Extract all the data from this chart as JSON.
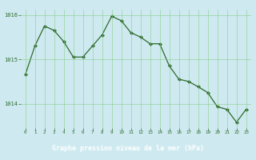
{
  "x": [
    0,
    1,
    2,
    3,
    4,
    5,
    6,
    7,
    8,
    9,
    10,
    11,
    12,
    13,
    14,
    15,
    16,
    17,
    18,
    19,
    20,
    21,
    22,
    23
  ],
  "y": [
    1014.65,
    1015.3,
    1015.75,
    1015.65,
    1015.4,
    1015.05,
    1015.05,
    1015.3,
    1015.55,
    1015.97,
    1015.87,
    1015.6,
    1015.5,
    1015.35,
    1015.35,
    1014.85,
    1014.55,
    1014.5,
    1014.38,
    1014.25,
    1013.93,
    1013.87,
    1013.58,
    1013.87
  ],
  "ylim": [
    1013.45,
    1016.12
  ],
  "yticks": [
    1014,
    1015,
    1016
  ],
  "xticks": [
    0,
    1,
    2,
    3,
    4,
    5,
    6,
    7,
    8,
    9,
    10,
    11,
    12,
    13,
    14,
    15,
    16,
    17,
    18,
    19,
    20,
    21,
    22,
    23
  ],
  "line_color": "#2d6a2d",
  "marker_color": "#2d6a2d",
  "bg_color": "#ceeaf0",
  "grid_color": "#88cc88",
  "xlabel": "Graphe pression niveau de la mer (hPa)",
  "bottom_bar_color": "#3d7a3d"
}
